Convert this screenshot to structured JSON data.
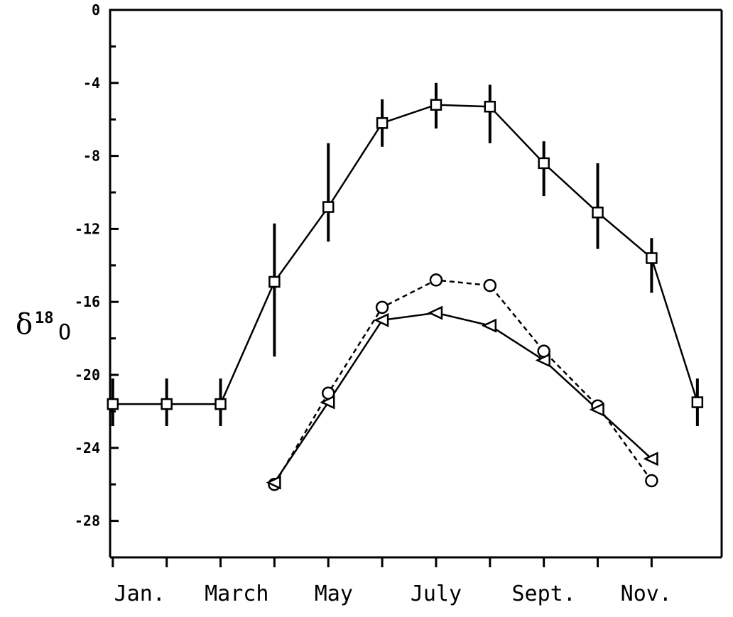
{
  "chart_data": {
    "type": "line",
    "title": "",
    "xlabel": "",
    "ylabel": "δ18O",
    "ylabel_parts": {
      "main": "δ",
      "sup": "18",
      "sub": "O"
    },
    "ylim": [
      -30,
      0
    ],
    "yticks": [
      0,
      -4,
      -8,
      -12,
      -16,
      -20,
      -24,
      -28
    ],
    "ytick_labels": [
      "0",
      "-4",
      "-8",
      "-12",
      "-16",
      "-20",
      "-24",
      "-28"
    ],
    "xlim": [
      0.95,
      12.3
    ],
    "x_month_ticks": [
      1,
      2,
      3,
      4,
      5,
      6,
      7,
      8,
      9,
      10,
      11
    ],
    "xtick_labels": [
      {
        "x": 1.5,
        "label": "Jan."
      },
      {
        "x": 3.3,
        "label": "March"
      },
      {
        "x": 5.1,
        "label": "May"
      },
      {
        "x": 7.0,
        "label": "July"
      },
      {
        "x": 9.0,
        "label": "Sept."
      },
      {
        "x": 10.9,
        "label": "Nov."
      }
    ],
    "grid": false,
    "series": [
      {
        "marker": "square",
        "line_style": "solid",
        "x": [
          1,
          2,
          3,
          4,
          5,
          6,
          7,
          8,
          9,
          10,
          11,
          11.85
        ],
        "y": [
          -21.6,
          -21.6,
          -21.6,
          -14.9,
          -10.8,
          -6.2,
          -5.2,
          -5.3,
          -8.4,
          -11.1,
          -13.6,
          -21.5
        ],
        "err_low": [
          -22.8,
          -22.8,
          -22.8,
          -19.0,
          -12.7,
          -7.5,
          -6.5,
          -7.3,
          -10.2,
          -13.1,
          -15.5,
          -22.8
        ],
        "err_high": [
          -20.2,
          -20.2,
          -20.2,
          -11.7,
          -7.3,
          -4.9,
          -4.0,
          -4.1,
          -7.2,
          -8.4,
          -12.5,
          -20.2
        ]
      },
      {
        "marker": "circle",
        "line_style": "dashed",
        "x": [
          4,
          5,
          6,
          7,
          8,
          9,
          10,
          11
        ],
        "y": [
          -26.0,
          -21.0,
          -16.3,
          -14.8,
          -15.1,
          -18.7,
          -21.7,
          -25.8
        ]
      },
      {
        "marker": "triangle-left",
        "line_style": "solid",
        "x": [
          4,
          5,
          6,
          7,
          8,
          9,
          10,
          11
        ],
        "y": [
          -25.9,
          -21.5,
          -17.0,
          -16.6,
          -17.3,
          -19.2,
          -21.9,
          -24.6
        ]
      }
    ]
  }
}
